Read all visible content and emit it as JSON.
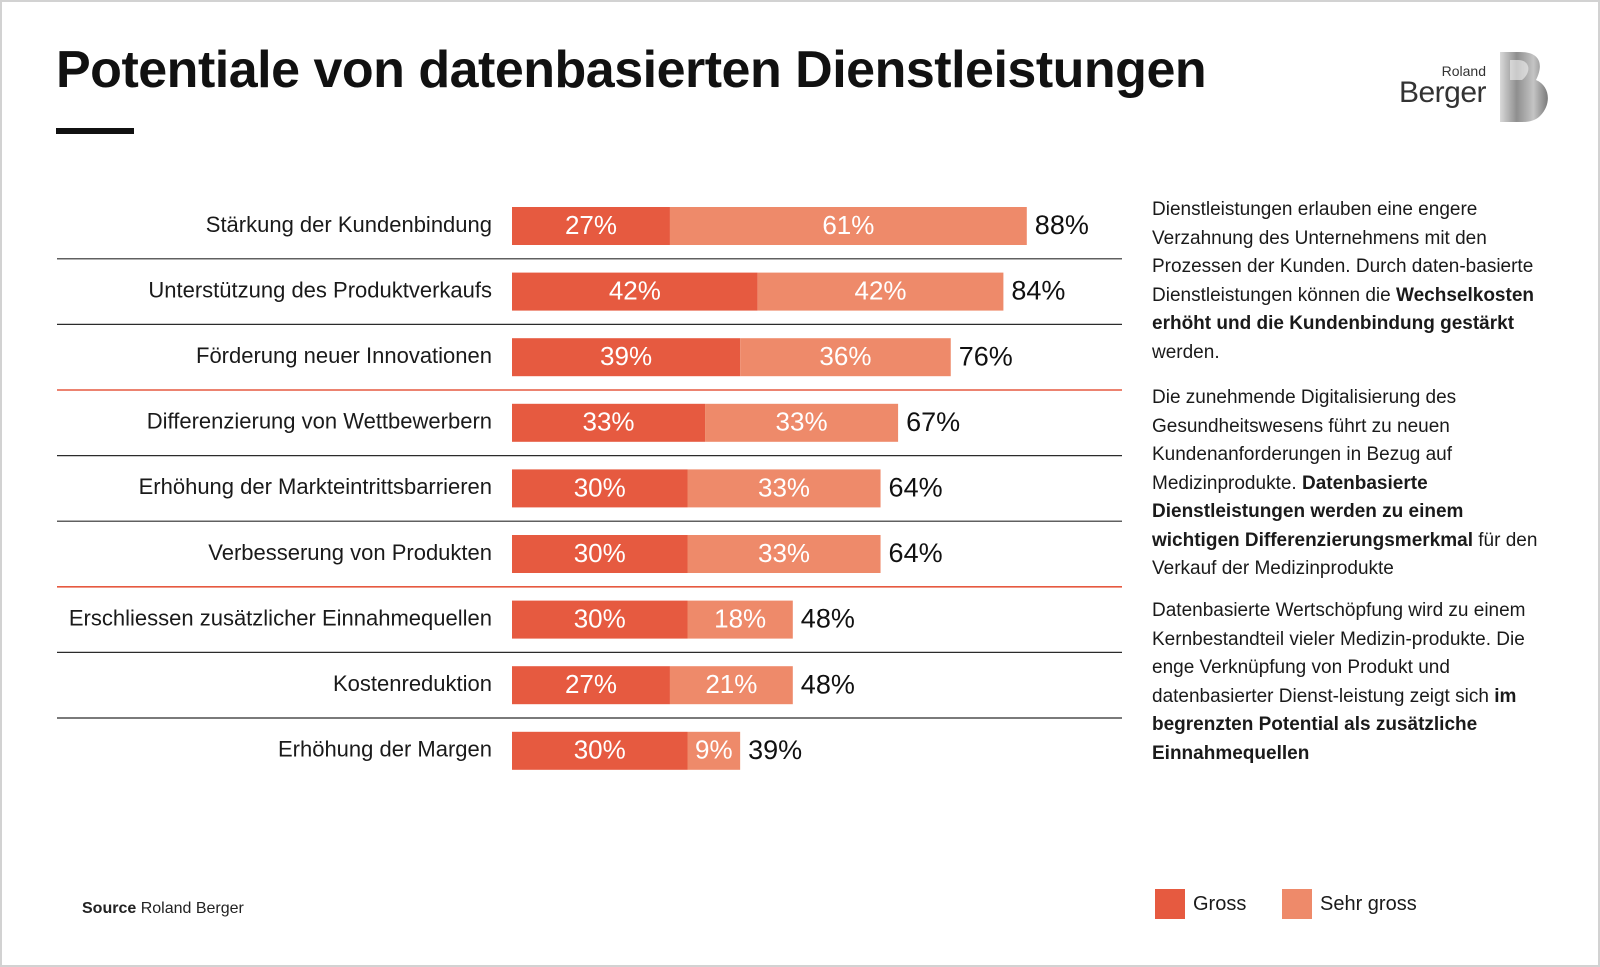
{
  "title": "Potentiale von datenbasierten Dienstleistungen",
  "logo": {
    "line1": "Roland",
    "line2": "Berger"
  },
  "colors": {
    "gross": "#e65a40",
    "sehr_gross": "#ee8a6a",
    "divider_dark": "#2b2b2b",
    "divider_accent": "#e65a40"
  },
  "chart_data": {
    "type": "bar",
    "orientation": "horizontal",
    "stacked": true,
    "categories": [
      "Stärkung der Kundenbindung",
      "Unterstützung des Produktverkaufs",
      "Förderung neuer Innovationen",
      "Differenzierung von Wettbewerbern",
      "Erhöhung der Markteintrittsbarrieren",
      "Verbesserung von Produkten",
      "Erschliessen zusätzlicher Einnahmequellen",
      "Kostenreduktion",
      "Erhöhung der Margen"
    ],
    "series": [
      {
        "name": "Gross",
        "values": [
          27,
          42,
          39,
          33,
          30,
          30,
          30,
          27,
          30
        ],
        "labels": [
          "27%",
          "42%",
          "39%",
          "33%",
          "30%",
          "30%",
          "30%",
          "27%",
          "30%"
        ]
      },
      {
        "name": "Sehr gross",
        "values": [
          61,
          42,
          36,
          33,
          33,
          33,
          18,
          21,
          9
        ],
        "labels": [
          "61%",
          "42%",
          "36%",
          "33%",
          "33%",
          "33%",
          "18%",
          "21%",
          "9%"
        ]
      }
    ],
    "totals": [
      "88%",
      "84%",
      "76%",
      "67%",
      "64%",
      "64%",
      "48%",
      "48%",
      "39%"
    ],
    "accent_dividers_after": [
      2,
      5
    ],
    "legend_position": "bottom-right",
    "xlim": [
      0,
      100
    ]
  },
  "commentary": {
    "p1": {
      "pre": "Dienstleistungen erlauben eine engere Verzahnung des Unternehmens mit den Prozessen der Kunden. Durch daten-basierte Dienstleistungen können die ",
      "bold": "Wechselkosten erhöht und die Kundenbindung gestärkt",
      "post": " werden."
    },
    "p2": {
      "pre": "Die zunehmende Digitalisierung des Gesundheitswesens führt zu neuen Kundenanforderungen in Bezug auf Medizinprodukte. ",
      "bold": "Datenbasierte Dienstleistungen werden zu einem wichtigen Differenzierungsmerkmal",
      "post": " für den Verkauf der Medizinprodukte"
    },
    "p3": {
      "pre": "Datenbasierte Wertschöpfung wird zu einem Kernbestandteil vieler Medizin-produkte. Die enge Verknüpfung von Produkt und datenbasierter Dienst-leistung zeigt sich ",
      "bold": "im begrenzten Potential als zusätzliche Einnahmequellen",
      "post": ""
    }
  },
  "source": {
    "label": "Source",
    "text": "Roland Berger"
  },
  "legend": [
    {
      "label": "Gross",
      "color": "#e65a40"
    },
    {
      "label": "Sehr gross",
      "color": "#ee8a6a"
    }
  ]
}
